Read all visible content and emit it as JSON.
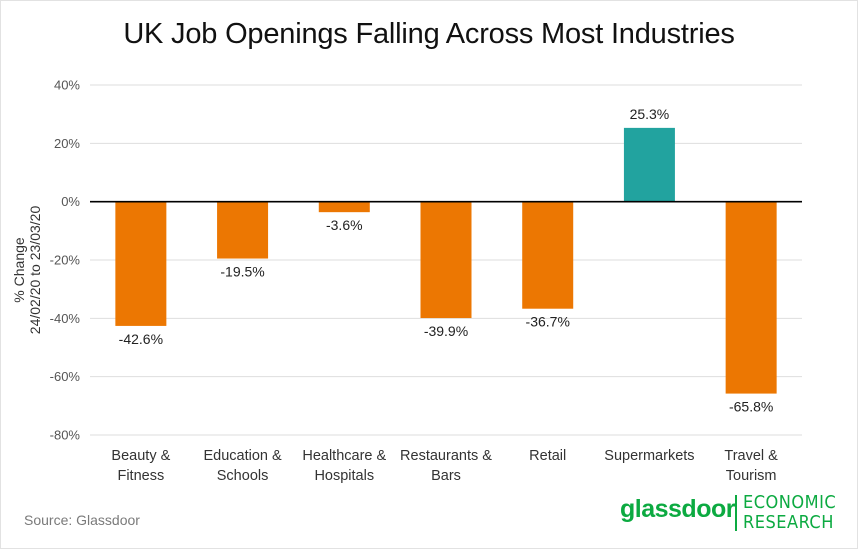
{
  "title": "UK Job Openings Falling Across Most Industries",
  "source": "Source: Glassdoor",
  "logo": {
    "wordmark": "glassdoor",
    "line1": "ECONOMIC",
    "line2": "RESEARCH",
    "color": "#0caa41"
  },
  "chart_data": {
    "type": "bar",
    "title": "UK Job Openings Falling Across Most Industries",
    "ylabel_lines": [
      "% Change",
      "24/02/20 to 23/03/20"
    ],
    "ylim": [
      -80,
      40
    ],
    "yticks": [
      40,
      20,
      0,
      -20,
      -40,
      -60,
      -80
    ],
    "ytick_labels": [
      "40%",
      "20%",
      "0%",
      "-20%",
      "-40%",
      "-60%",
      "-80%"
    ],
    "grid": true,
    "categories": [
      [
        "Beauty &",
        "Fitness"
      ],
      [
        "Education &",
        "Schools"
      ],
      [
        "Healthcare &",
        "Hospitals"
      ],
      [
        "Restaurants &",
        "Bars"
      ],
      [
        "Retail"
      ],
      [
        "Supermarkets"
      ],
      [
        "Travel &",
        "Tourism"
      ]
    ],
    "values": [
      -42.6,
      -19.5,
      -3.6,
      -39.9,
      -36.7,
      25.3,
      -65.8
    ],
    "data_labels": [
      "-42.6%",
      "-19.5%",
      "-3.6%",
      "-39.9%",
      "-36.7%",
      "25.3%",
      "-65.8%"
    ],
    "colors": {
      "negative": "#ec7702",
      "positive": "#22a39f",
      "grid": "#dedede",
      "zero_line": "#000000"
    }
  }
}
